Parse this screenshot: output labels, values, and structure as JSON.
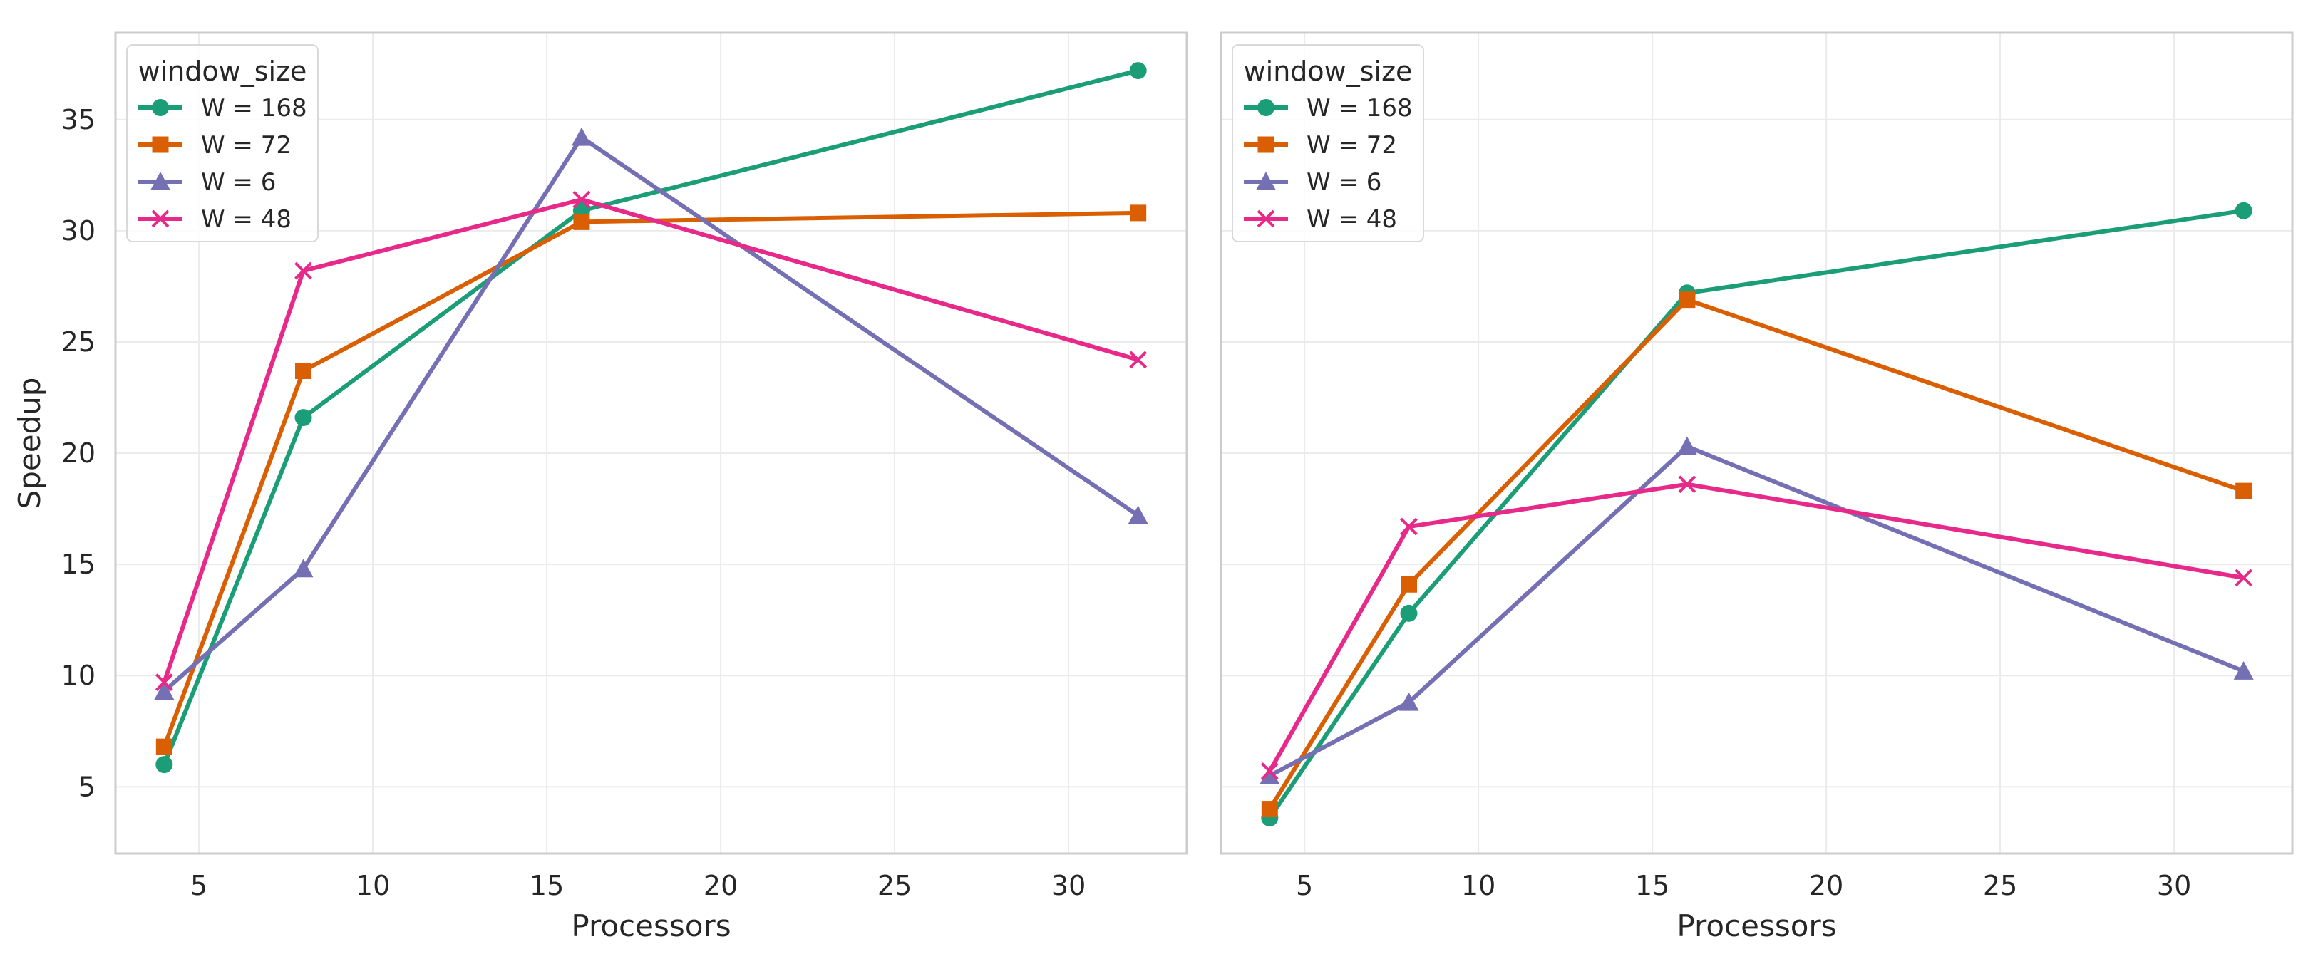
{
  "chart_data": [
    {
      "type": "line",
      "title": "",
      "xlabel": "Processors",
      "ylabel": "Speedup",
      "xlim": [
        2.6,
        33.4
      ],
      "ylim": [
        2.0,
        38.9
      ],
      "xticks": [
        5,
        10,
        15,
        20,
        25,
        30
      ],
      "yticks": [
        5,
        10,
        15,
        20,
        25,
        30,
        35
      ],
      "grid": true,
      "legend": {
        "title": "window_size",
        "position": "top-left"
      },
      "x": [
        4,
        8,
        16,
        32
      ],
      "series": [
        {
          "name": "W = 168",
          "marker": "circle",
          "color": "#1b9e77",
          "values": [
            6.0,
            21.6,
            30.9,
            37.2
          ]
        },
        {
          "name": "W = 72",
          "marker": "square",
          "color": "#d95f02",
          "values": [
            6.8,
            23.7,
            30.4,
            30.8
          ]
        },
        {
          "name": "W = 6",
          "marker": "triangle",
          "color": "#7570b3",
          "values": [
            9.3,
            14.8,
            34.2,
            17.2
          ]
        },
        {
          "name": "W = 48",
          "marker": "x",
          "color": "#e7298a",
          "values": [
            9.7,
            28.2,
            31.4,
            24.2
          ]
        }
      ]
    },
    {
      "type": "line",
      "title": "",
      "xlabel": "Processors",
      "ylabel": "",
      "xlim": [
        2.6,
        33.4
      ],
      "ylim": [
        2.0,
        38.9
      ],
      "xticks": [
        5,
        10,
        15,
        20,
        25,
        30
      ],
      "yticks": [
        5,
        10,
        15,
        20,
        25,
        30,
        35
      ],
      "grid": true,
      "legend": {
        "title": "window_size",
        "position": "top-left"
      },
      "x": [
        4,
        8,
        16,
        32
      ],
      "series": [
        {
          "name": "W = 168",
          "marker": "circle",
          "color": "#1b9e77",
          "values": [
            3.6,
            12.8,
            27.2,
            30.9
          ]
        },
        {
          "name": "W = 72",
          "marker": "square",
          "color": "#d95f02",
          "values": [
            4.0,
            14.1,
            26.9,
            18.3
          ]
        },
        {
          "name": "W = 6",
          "marker": "triangle",
          "color": "#7570b3",
          "values": [
            5.5,
            8.8,
            20.3,
            10.2
          ]
        },
        {
          "name": "W = 48",
          "marker": "x",
          "color": "#e7298a",
          "values": [
            5.7,
            16.7,
            18.6,
            14.4
          ]
        }
      ]
    }
  ],
  "colors": {
    "grid": "#ebebeb",
    "frame": "#cccccc",
    "text": "#262626",
    "legend_border": "#d9d9d9"
  }
}
